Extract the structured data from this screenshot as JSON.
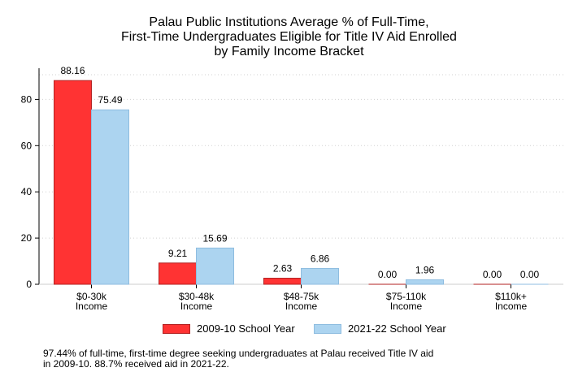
{
  "title_lines": [
    "Palau Public Institutions Average % of Full-Time,",
    "First-Time Undergraduates Eligible for Title IV Aid Enrolled",
    "by Family Income Bracket"
  ],
  "note_lines": [
    "97.44% of full-time, first-time degree seeking undergraduates at Palau received Title IV aid",
    "in 2009-10. 88.7% received aid in 2021-22."
  ],
  "colors": {
    "series1": "#ff3333",
    "series1_border": "#b22222",
    "series2": "#acd4f0",
    "series2_border": "#8fbde0",
    "grid": "#d0d0d0"
  },
  "chart_data": {
    "type": "bar",
    "title": "Palau Public Institutions Average % of Full-Time, First-Time Undergraduates Eligible for Title IV Aid Enrolled by Family Income Bracket",
    "categories": [
      [
        "$0-30k",
        "Income"
      ],
      [
        "$30-48k",
        "Income"
      ],
      [
        "$48-75k",
        "Income"
      ],
      [
        "$75-110k",
        "Income"
      ],
      [
        "$110k+",
        "Income"
      ]
    ],
    "series": [
      {
        "name": "2009-10 School Year",
        "values": [
          88.16,
          9.21,
          2.63,
          0.0,
          0.0
        ],
        "labels": [
          "88.16",
          "9.21",
          "2.63",
          "0.00",
          "0.00"
        ]
      },
      {
        "name": "2021-22 School Year",
        "values": [
          75.49,
          15.69,
          6.86,
          1.96,
          0.0
        ],
        "labels": [
          "75.49",
          "15.69",
          "6.86",
          "1.96",
          "0.00"
        ]
      }
    ],
    "yticks": [
      0,
      20,
      40,
      60,
      80
    ],
    "ylim": [
      0,
      93.5
    ],
    "grid": true,
    "legend": "bottom"
  }
}
